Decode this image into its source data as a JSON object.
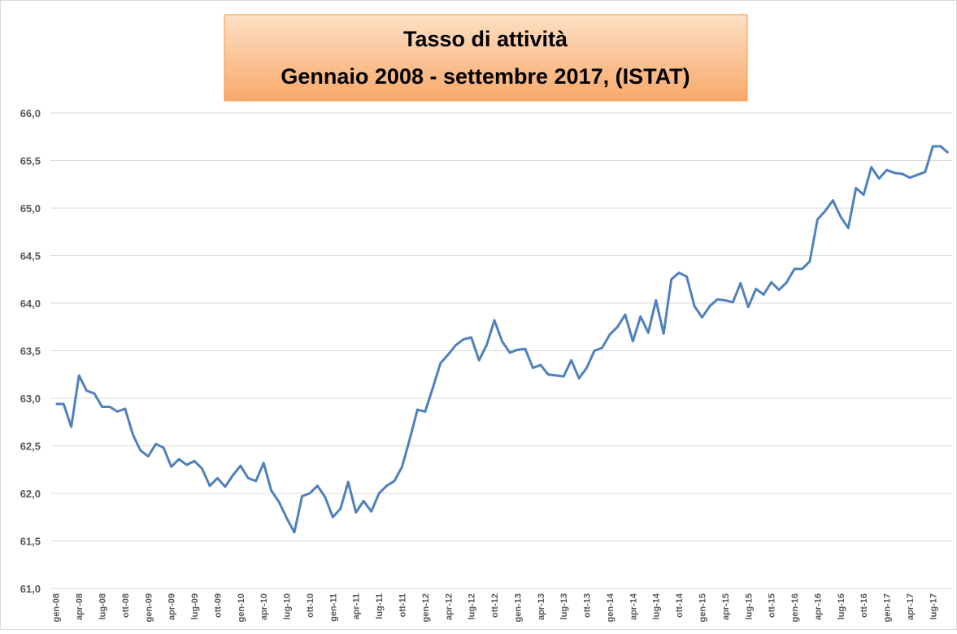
{
  "chart_data": {
    "type": "line",
    "title": "Tasso di attività",
    "subtitle": "Gennaio 2008 - settembre 2017, (ISTAT)",
    "categories": [
      "gen-08",
      null,
      null,
      "apr-08",
      null,
      null,
      "lug-08",
      null,
      null,
      "ott-08",
      null,
      null,
      "gen-09",
      null,
      null,
      "apr-09",
      null,
      null,
      "lug-09",
      null,
      null,
      "ott-09",
      null,
      null,
      "gen-10",
      null,
      null,
      "apr-10",
      null,
      null,
      "lug-10",
      null,
      null,
      "ott-10",
      null,
      null,
      "gen-11",
      null,
      null,
      "apr-11",
      null,
      null,
      "lug-11",
      null,
      null,
      "ott-11",
      null,
      null,
      "gen-12",
      null,
      null,
      "apr-12",
      null,
      null,
      "lug-12",
      null,
      null,
      "ott-12",
      null,
      null,
      "gen-13",
      null,
      null,
      "apr-13",
      null,
      null,
      "lug-13",
      null,
      null,
      "ott-13",
      null,
      null,
      "gen-14",
      null,
      null,
      "apr-14",
      null,
      null,
      "lug-14",
      null,
      null,
      "ott-14",
      null,
      null,
      "gen-15",
      null,
      null,
      "apr-15",
      null,
      null,
      "lug-15",
      null,
      null,
      "ott-15",
      null,
      null,
      "gen-16",
      null,
      null,
      "apr-16",
      null,
      null,
      "lug-16",
      null,
      null,
      "ott-16",
      null,
      null,
      "gen-17",
      null,
      null,
      "apr-17",
      null,
      null,
      "lug-17",
      null,
      null
    ],
    "series": [
      {
        "color": "#4f81bd",
        "values": [
          62.94,
          62.94,
          62.7,
          63.24,
          63.08,
          63.05,
          62.91,
          62.91,
          62.86,
          62.89,
          62.62,
          62.45,
          62.39,
          62.52,
          62.48,
          62.28,
          62.36,
          62.3,
          62.34,
          62.26,
          62.08,
          62.16,
          62.07,
          62.19,
          62.29,
          62.16,
          62.13,
          62.32,
          62.03,
          61.91,
          61.74,
          61.59,
          61.97,
          62.0,
          62.08,
          61.96,
          61.75,
          61.84,
          62.12,
          61.8,
          61.92,
          61.81,
          62.0,
          62.08,
          62.13,
          62.28,
          62.57,
          62.88,
          62.86,
          63.11,
          63.37,
          63.46,
          63.56,
          63.62,
          63.64,
          63.4,
          63.56,
          63.82,
          63.6,
          63.48,
          63.51,
          63.52,
          63.32,
          63.35,
          63.25,
          63.24,
          63.23,
          63.4,
          63.21,
          63.32,
          63.5,
          63.53,
          63.67,
          63.75,
          63.88,
          63.6,
          63.86,
          63.69,
          64.03,
          63.68,
          64.25,
          64.32,
          64.28,
          63.97,
          63.85,
          63.97,
          64.04,
          64.03,
          64.01,
          64.21,
          63.96,
          64.15,
          64.09,
          64.22,
          64.14,
          64.22,
          64.36,
          64.36,
          64.44,
          64.88,
          64.97,
          65.08,
          64.91,
          64.79,
          65.21,
          65.14,
          65.43,
          65.31,
          65.4,
          65.37,
          65.36,
          65.32,
          65.35,
          65.38,
          65.65,
          65.65,
          65.58
        ]
      }
    ],
    "ylim": [
      61,
      66
    ],
    "yticks": [
      {
        "value": 61,
        "label": "61,0"
      },
      {
        "value": 61.5,
        "label": "61,5"
      },
      {
        "value": 62,
        "label": "62,0"
      },
      {
        "value": 62.5,
        "label": "62,5"
      },
      {
        "value": 63,
        "label": "63,0"
      },
      {
        "value": 63.5,
        "label": "63,5"
      },
      {
        "value": 64,
        "label": "64,0"
      },
      {
        "value": 64.5,
        "label": "64,5"
      },
      {
        "value": 65,
        "label": "65,0"
      },
      {
        "value": 65.5,
        "label": "65,5"
      },
      {
        "value": 66,
        "label": "66,0"
      }
    ],
    "grid": true
  }
}
